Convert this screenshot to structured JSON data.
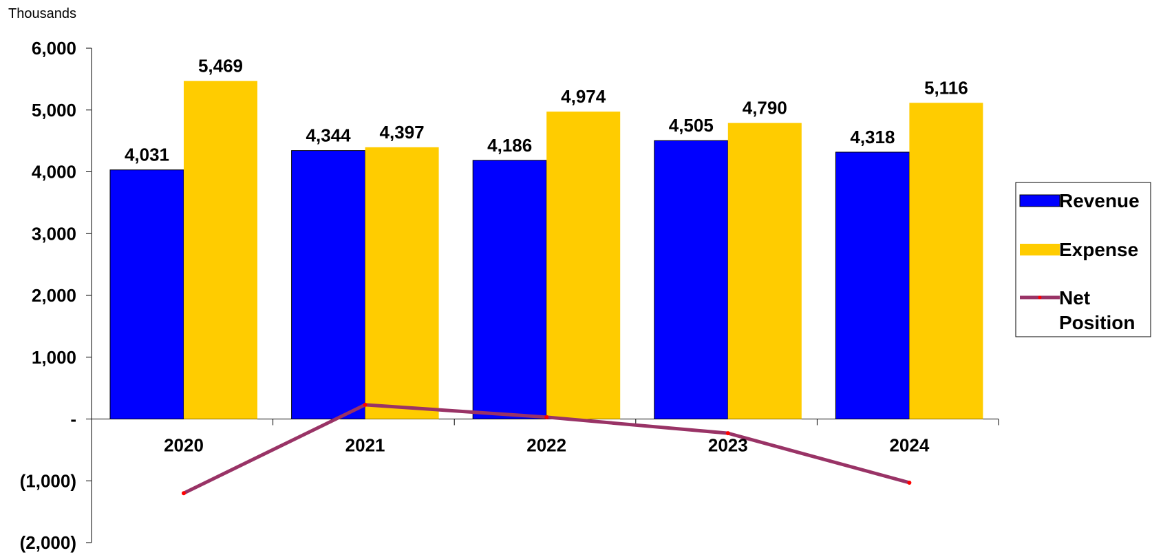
{
  "chart_data": {
    "type": "bar",
    "unit_label": "Thousands",
    "categories": [
      "2020",
      "2021",
      "2022",
      "2023",
      "2024"
    ],
    "ylim": [
      -2000,
      6000
    ],
    "y_ticks": [
      6000,
      5000,
      4000,
      3000,
      2000,
      1000,
      0,
      -1000,
      -2000
    ],
    "y_tick_labels": [
      "6,000",
      "5,000",
      "4,000",
      "3,000",
      "2,000",
      "1,000",
      "-",
      "(1,000)",
      "(2,000)"
    ],
    "grid": false,
    "legend_position": "right",
    "series": [
      {
        "name": "Revenue",
        "kind": "bar",
        "color": "#0000FF",
        "values": [
          4031,
          4344,
          4186,
          4505,
          4318
        ],
        "labels": [
          "4,031",
          "4,344",
          "4,186",
          "4,505",
          "4,318"
        ]
      },
      {
        "name": "Expense",
        "kind": "bar",
        "color": "#FFCC00",
        "values": [
          5469,
          4397,
          4974,
          4790,
          5116
        ],
        "labels": [
          "5,469",
          "4,397",
          "4,974",
          "4,790",
          "5,116"
        ]
      },
      {
        "name": "Net Position",
        "kind": "line",
        "color": "#993366",
        "marker_color": "#FF0000",
        "values": [
          -1200,
          230,
          30,
          -230,
          -1030
        ]
      }
    ]
  }
}
